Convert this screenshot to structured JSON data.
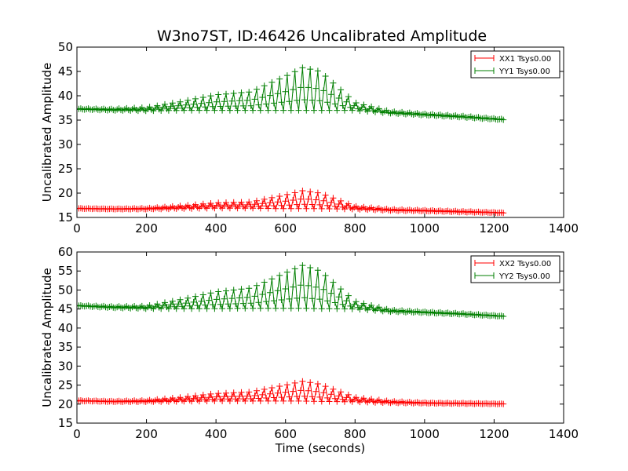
{
  "figure_title": "W3no7ST, ID:46426 Uncalibrated Amplitude",
  "colors": {
    "xx": "#ff0000",
    "yy": "#007f00"
  },
  "chart_data": [
    {
      "type": "line",
      "title": "W3no7ST, ID:46426 Uncalibrated Amplitude",
      "xlabel": "",
      "ylabel": "Uncalibrated Amplitude",
      "xlim": [
        0,
        1400
      ],
      "ylim": [
        15,
        50
      ],
      "xticks": [
        "0",
        "200",
        "400",
        "600",
        "800",
        "1000",
        "1200",
        "1400"
      ],
      "yticks": [
        "15",
        "20",
        "25",
        "30",
        "35",
        "40",
        "45",
        "50"
      ],
      "legend_position": "top-right",
      "marker": "+",
      "series": [
        {
          "name": "XX1 Tsys0.00",
          "color": "#ff0000",
          "x": [
            0,
            100,
            200,
            300,
            400,
            500,
            600,
            650,
            700,
            800,
            900,
            1000,
            1100,
            1230
          ],
          "y_base": [
            16.8,
            16.7,
            16.7,
            16.8,
            16.9,
            16.9,
            16.8,
            16.8,
            16.8,
            16.7,
            16.4,
            16.3,
            16.1,
            15.9
          ],
          "y_peak": [
            16.9,
            16.8,
            16.9,
            17.4,
            18.0,
            18.2,
            19.6,
            20.5,
            20.0,
            17.3,
            16.7,
            16.5,
            16.3,
            16.0
          ]
        },
        {
          "name": "YY1 Tsys0.00",
          "color": "#007f00",
          "x": [
            0,
            100,
            200,
            300,
            400,
            500,
            600,
            650,
            700,
            800,
            900,
            1000,
            1100,
            1230
          ],
          "y_base": [
            37.2,
            37.0,
            36.9,
            37.0,
            37.0,
            37.0,
            37.0,
            37.0,
            37.0,
            37.0,
            36.4,
            36.0,
            35.6,
            35.0
          ],
          "y_peak": [
            37.4,
            37.3,
            37.6,
            38.8,
            40.2,
            40.8,
            44.0,
            45.8,
            45.0,
            38.6,
            36.8,
            36.3,
            35.9,
            35.2
          ]
        }
      ]
    },
    {
      "type": "line",
      "title": "",
      "xlabel": "Time (seconds)",
      "ylabel": "Uncalibrated Amplitude",
      "xlim": [
        0,
        1400
      ],
      "ylim": [
        15,
        60
      ],
      "xticks": [
        "0",
        "200",
        "400",
        "600",
        "800",
        "1000",
        "1200",
        "1400"
      ],
      "yticks": [
        "15",
        "20",
        "25",
        "30",
        "35",
        "40",
        "45",
        "50",
        "55",
        "60"
      ],
      "legend_position": "top-right",
      "marker": "+",
      "series": [
        {
          "name": "XX2 Tsys0.00",
          "color": "#ff0000",
          "x": [
            0,
            100,
            200,
            300,
            400,
            500,
            600,
            650,
            700,
            800,
            900,
            1000,
            1100,
            1230
          ],
          "y_base": [
            20.8,
            20.6,
            20.6,
            20.7,
            20.8,
            20.8,
            20.8,
            20.8,
            20.7,
            20.6,
            20.3,
            20.2,
            20.1,
            20.0
          ],
          "y_peak": [
            21.0,
            20.8,
            21.0,
            21.8,
            22.8,
            23.2,
            25.0,
            26.0,
            25.2,
            21.8,
            20.8,
            20.4,
            20.3,
            20.1
          ]
        },
        {
          "name": "YY2 Tsys0.00",
          "color": "#007f00",
          "x": [
            0,
            100,
            200,
            300,
            400,
            500,
            600,
            650,
            700,
            800,
            900,
            1000,
            1100,
            1230
          ],
          "y_base": [
            45.8,
            45.3,
            45.1,
            45.1,
            45.1,
            45.2,
            45.2,
            45.2,
            45.1,
            45.0,
            44.3,
            44.0,
            43.6,
            43.0
          ],
          "y_peak": [
            46.0,
            45.7,
            45.8,
            47.5,
            49.5,
            50.5,
            54.5,
            56.5,
            55.0,
            47.0,
            44.8,
            44.3,
            43.9,
            43.2
          ]
        }
      ]
    }
  ]
}
